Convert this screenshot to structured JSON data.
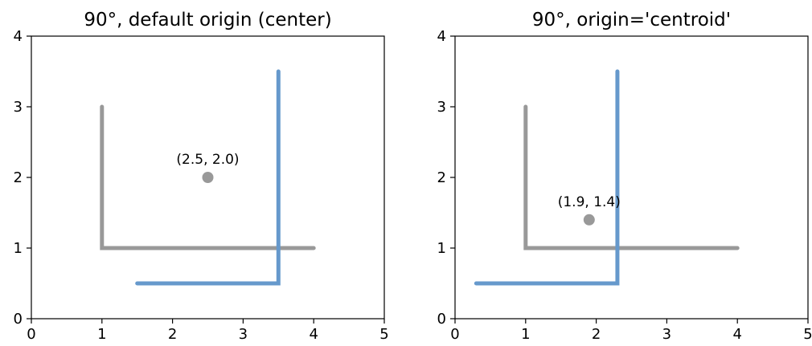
{
  "chart_data": [
    {
      "type": "line",
      "title": "90°, default origin (center)",
      "xlim": [
        0,
        5
      ],
      "ylim": [
        0,
        4
      ],
      "xticks": [
        "0",
        "1",
        "2",
        "3",
        "4",
        "5"
      ],
      "yticks": [
        "0",
        "1",
        "2",
        "3",
        "4"
      ],
      "grid": false,
      "series": [
        {
          "color": "#999999",
          "x": [
            1,
            1,
            4
          ],
          "y": [
            3,
            1,
            1
          ]
        },
        {
          "color": "#6699cc",
          "x": [
            1.5,
            3.5,
            3.5
          ],
          "y": [
            0.5,
            0.5,
            3.5
          ]
        }
      ],
      "points": [
        {
          "x": 2.5,
          "y": 2.0,
          "color": "#999999",
          "label": "(2.5, 2.0)"
        }
      ]
    },
    {
      "type": "line",
      "title": "90°, origin='centroid'",
      "xlim": [
        0,
        5
      ],
      "ylim": [
        0,
        4
      ],
      "xticks": [
        "0",
        "1",
        "2",
        "3",
        "4",
        "5"
      ],
      "yticks": [
        "0",
        "1",
        "2",
        "3",
        "4"
      ],
      "grid": false,
      "series": [
        {
          "color": "#999999",
          "x": [
            1,
            1,
            4
          ],
          "y": [
            3,
            1,
            1
          ]
        },
        {
          "color": "#6699cc",
          "x": [
            0.3,
            2.3,
            2.3
          ],
          "y": [
            0.5,
            0.5,
            3.5
          ]
        }
      ],
      "points": [
        {
          "x": 1.9,
          "y": 1.4,
          "color": "#999999",
          "label": "(1.9, 1.4)"
        }
      ]
    }
  ]
}
